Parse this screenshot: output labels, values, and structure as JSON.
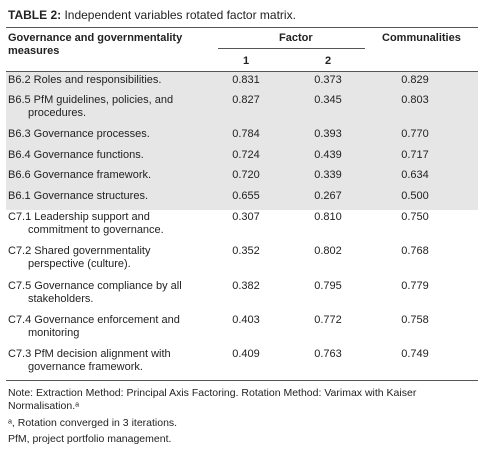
{
  "caption": {
    "label": "TABLE 2:",
    "text": "Independent variables rotated factor matrix."
  },
  "header": {
    "measures_line1": "Governance and governmentality",
    "measures_line2": "measures",
    "factor": "Factor",
    "communalities": "Communalities",
    "factor_1": "1",
    "factor_2": "2"
  },
  "rows": [
    {
      "line1": "B6.2 Roles and responsibilities.",
      "line2": "",
      "f1": "0.831",
      "f2": "0.373",
      "comm": "0.829"
    },
    {
      "line1": "B6.5 PfM guidelines, policies, and",
      "line2": "procedures.",
      "f1": "0.827",
      "f2": "0.345",
      "comm": "0.803"
    },
    {
      "line1": "B6.3 Governance processes.",
      "line2": "",
      "f1": "0.784",
      "f2": "0.393",
      "comm": "0.770"
    },
    {
      "line1": "B6.4 Governance functions.",
      "line2": "",
      "f1": "0.724",
      "f2": "0.439",
      "comm": "0.717"
    },
    {
      "line1": "B6.6 Governance framework.",
      "line2": "",
      "f1": "0.720",
      "f2": "0.339",
      "comm": "0.634"
    },
    {
      "line1": "B6.1 Governance structures.",
      "line2": "",
      "f1": "0.655",
      "f2": "0.267",
      "comm": "0.500"
    },
    {
      "line1": "C7.1 Leadership support and",
      "line2": "commitment to governance.",
      "f1": "0.307",
      "f2": "0.810",
      "comm": "0.750"
    },
    {
      "line1": "C7.2 Shared governmentality",
      "line2": "perspective (culture).",
      "f1": "0.352",
      "f2": "0.802",
      "comm": "0.768"
    },
    {
      "line1": "C7.5 Governance compliance by all",
      "line2": "stakeholders.",
      "f1": "0.382",
      "f2": "0.795",
      "comm": "0.779"
    },
    {
      "line1": "C7.4 Governance enforcement and",
      "line2": "monitoring",
      "f1": "0.403",
      "f2": "0.772",
      "comm": "0.758"
    },
    {
      "line1": "C7.3 PfM decision alignment with",
      "line2": "governance framework.",
      "f1": "0.409",
      "f2": "0.763",
      "comm": "0.749"
    }
  ],
  "notes": {
    "line1": "Note: Extraction Method: Principal Axis Factoring. Rotation Method: Varimax with Kaiser",
    "line2": "Normalisation.ᵃ",
    "line3": "ᵃ, Rotation converged in 3 iterations.",
    "line4": "PfM, project portfolio management."
  },
  "colors": {
    "shade": "#e6e6e6",
    "rule": "#555555",
    "text": "#222222"
  }
}
